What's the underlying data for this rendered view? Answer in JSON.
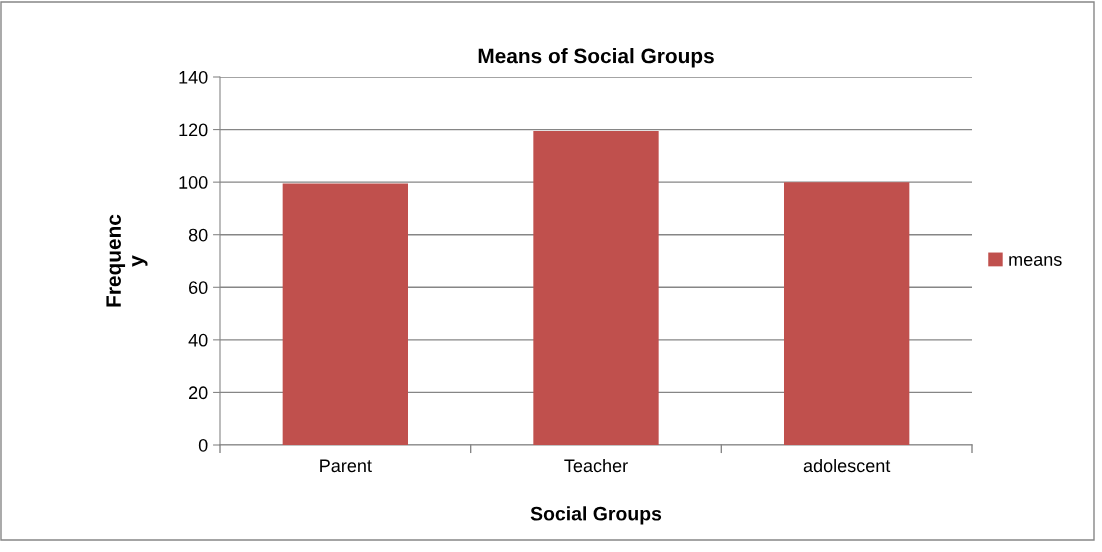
{
  "chart_data": {
    "type": "bar",
    "title": "Means of Social Groups",
    "xlabel": "Social Groups",
    "ylabel": "Frequenc\ny",
    "categories": [
      "Parent",
      "Teacher",
      "adolescent"
    ],
    "series": [
      {
        "name": "means",
        "color": "#c0504d",
        "values": [
          99.5,
          119.5,
          100
        ]
      }
    ],
    "ylim": [
      0,
      140
    ],
    "yticks": [
      0,
      20,
      40,
      60,
      80,
      100,
      120,
      140
    ],
    "grid": "y",
    "legend": "right"
  }
}
